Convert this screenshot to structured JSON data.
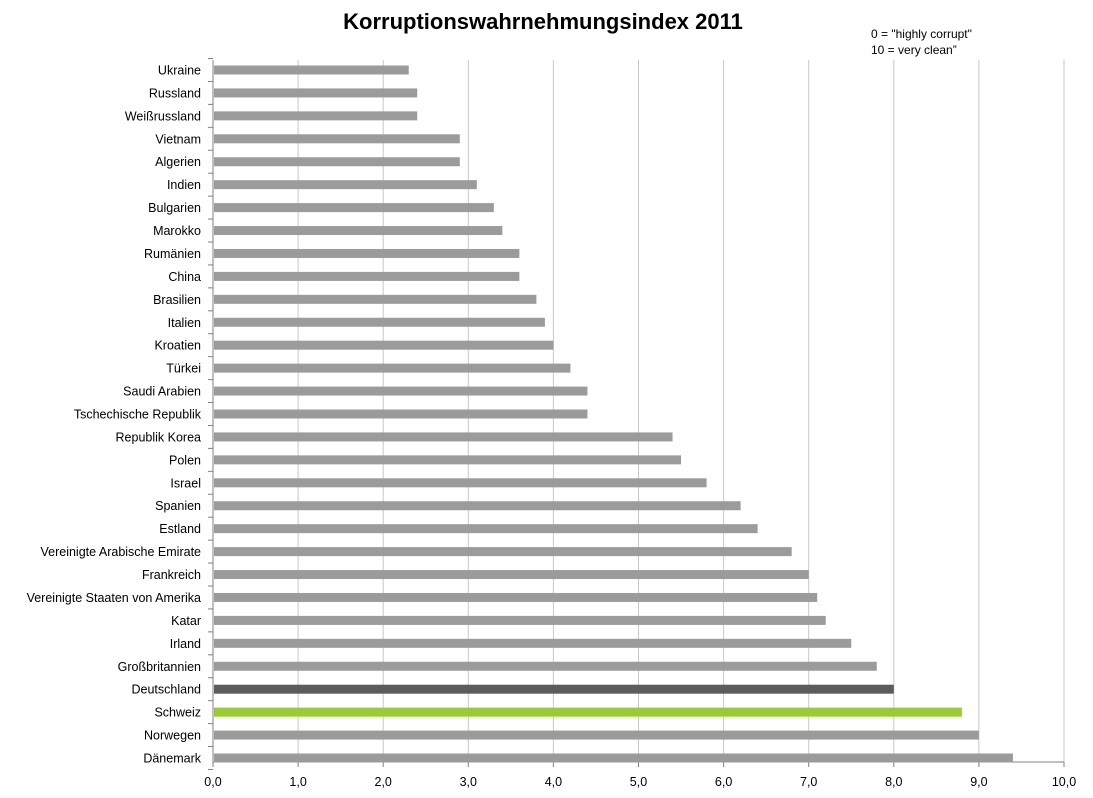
{
  "chart_data": {
    "type": "bar",
    "orientation": "horizontal",
    "title": "Korruptionswahrnehmungsindex 2011",
    "annotation": [
      "0 = \"highly corrupt\"",
      "10 = very clean”"
    ],
    "categories": [
      "Ukraine",
      "Russland",
      "Weißrussland",
      "Vietnam",
      "Algerien",
      "Indien",
      "Bulgarien",
      "Marokko",
      "Rumänien",
      "China",
      "Brasilien",
      "Italien",
      "Kroatien",
      "Türkei",
      "Saudi Arabien",
      "Tschechische Republik",
      "Republik Korea",
      "Polen",
      "Israel",
      "Spanien",
      "Estland",
      "Vereinigte Arabische Emirate",
      "Frankreich",
      "Vereinigte Staaten von Amerika",
      "Katar",
      "Irland",
      "Großbritannien",
      "Deutschland",
      "Schweiz",
      "Norwegen",
      "Dänemark"
    ],
    "values": [
      2.3,
      2.4,
      2.4,
      2.9,
      2.9,
      3.1,
      3.3,
      3.4,
      3.6,
      3.6,
      3.8,
      3.9,
      4.0,
      4.2,
      4.4,
      4.4,
      5.4,
      5.5,
      5.8,
      6.2,
      6.4,
      6.8,
      7.0,
      7.1,
      7.2,
      7.5,
      7.8,
      8.0,
      8.8,
      9.0,
      9.4
    ],
    "xlim": [
      0,
      10
    ],
    "xticks": [
      "0,0",
      "1,0",
      "2,0",
      "3,0",
      "4,0",
      "5,0",
      "6,0",
      "7,0",
      "8,0",
      "9,0",
      "10,0"
    ],
    "grid": true,
    "colors": {
      "default": "#9b9b9b",
      "Deutschland": "#5c5c5c",
      "Schweiz": "#99cc33",
      "grid": "#c8c8c8",
      "axis": "#808080"
    }
  }
}
